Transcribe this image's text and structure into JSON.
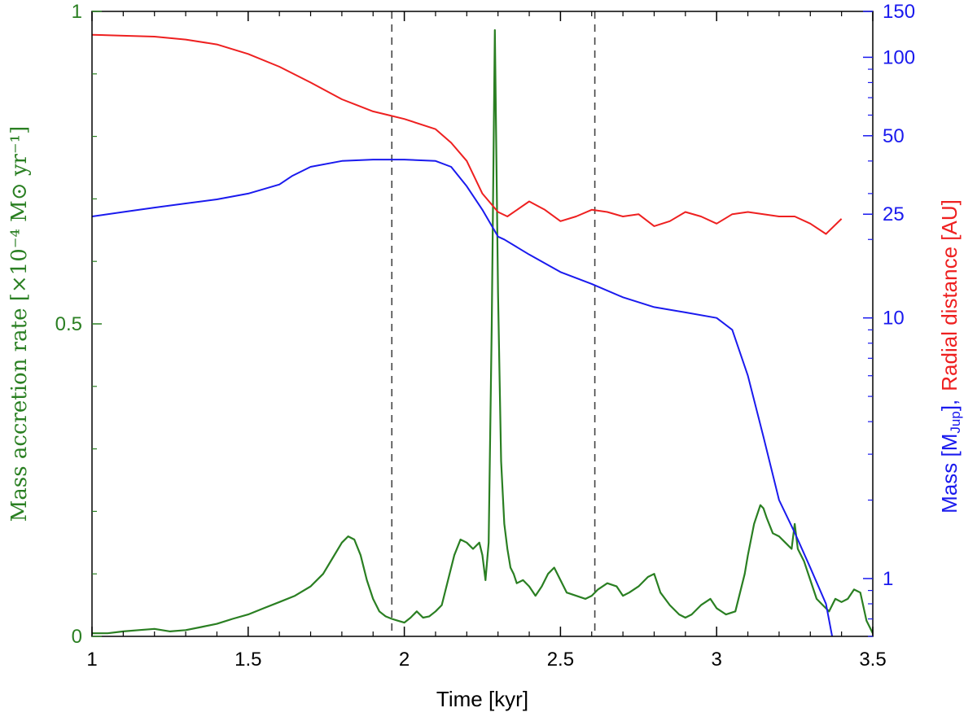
{
  "chart_data": {
    "type": "line",
    "colors": {
      "accretion": "#2a7f22",
      "mass": "#1a1aee",
      "radius": "#ee2020",
      "axis": "#000000",
      "dashed": "#444444"
    },
    "x_axis": {
      "label": "Time [kyr]",
      "range": [
        1,
        3.5
      ],
      "ticks": [
        1,
        1.5,
        2,
        2.5,
        3,
        3.5
      ],
      "tick_labels": [
        "1",
        "1.5",
        "2",
        "2.5",
        "3",
        "3.5"
      ]
    },
    "y_left": {
      "label_main": "Mass accretion rate ",
      "label_unit": "[×10⁻⁴ M⊙ yr⁻¹]",
      "range": [
        0,
        1
      ],
      "ticks": [
        0,
        0.5,
        1
      ],
      "tick_labels": [
        "0",
        "0.5",
        "1"
      ]
    },
    "y_right": {
      "scale": "log",
      "range": [
        0.6,
        150
      ],
      "ticks": [
        1,
        10,
        25,
        50,
        100,
        150
      ],
      "tick_labels": [
        "1",
        "10",
        "25",
        "50",
        "100",
        "150"
      ],
      "label_mass": "Mass [M",
      "label_mass_sub": "Jup",
      "label_mass_end": "],",
      "label_radius": "Radial distance [AU]"
    },
    "vlines": [
      1.96,
      2.61
    ],
    "series": [
      {
        "name": "Mass accretion rate",
        "axis": "left",
        "x": [
          1.0,
          1.05,
          1.1,
          1.15,
          1.2,
          1.25,
          1.3,
          1.35,
          1.4,
          1.45,
          1.5,
          1.55,
          1.6,
          1.65,
          1.7,
          1.74,
          1.77,
          1.8,
          1.82,
          1.84,
          1.86,
          1.88,
          1.9,
          1.92,
          1.94,
          1.96,
          1.98,
          2.0,
          2.02,
          2.04,
          2.06,
          2.08,
          2.1,
          2.12,
          2.14,
          2.16,
          2.18,
          2.2,
          2.22,
          2.24,
          2.25,
          2.26,
          2.27,
          2.28,
          2.29,
          2.3,
          2.31,
          2.32,
          2.33,
          2.34,
          2.35,
          2.36,
          2.38,
          2.4,
          2.42,
          2.44,
          2.46,
          2.48,
          2.5,
          2.52,
          2.55,
          2.58,
          2.6,
          2.62,
          2.65,
          2.68,
          2.7,
          2.72,
          2.75,
          2.78,
          2.8,
          2.82,
          2.85,
          2.88,
          2.9,
          2.92,
          2.95,
          2.98,
          3.0,
          3.03,
          3.06,
          3.09,
          3.1,
          3.12,
          3.14,
          3.15,
          3.16,
          3.18,
          3.2,
          3.22,
          3.24,
          3.25,
          3.26,
          3.28,
          3.3,
          3.32,
          3.34,
          3.36,
          3.38,
          3.4,
          3.42,
          3.44,
          3.46,
          3.48,
          3.5
        ],
        "values": [
          0.005,
          0.005,
          0.008,
          0.01,
          0.012,
          0.008,
          0.01,
          0.015,
          0.02,
          0.028,
          0.035,
          0.045,
          0.055,
          0.065,
          0.08,
          0.1,
          0.125,
          0.15,
          0.16,
          0.155,
          0.13,
          0.09,
          0.06,
          0.04,
          0.032,
          0.028,
          0.025,
          0.022,
          0.03,
          0.04,
          0.03,
          0.032,
          0.04,
          0.05,
          0.09,
          0.13,
          0.155,
          0.15,
          0.14,
          0.15,
          0.13,
          0.09,
          0.15,
          0.5,
          0.97,
          0.55,
          0.28,
          0.18,
          0.14,
          0.11,
          0.1,
          0.085,
          0.09,
          0.08,
          0.065,
          0.08,
          0.1,
          0.11,
          0.09,
          0.07,
          0.065,
          0.06,
          0.065,
          0.075,
          0.085,
          0.08,
          0.065,
          0.07,
          0.08,
          0.095,
          0.1,
          0.07,
          0.05,
          0.035,
          0.03,
          0.035,
          0.05,
          0.06,
          0.045,
          0.035,
          0.04,
          0.1,
          0.13,
          0.18,
          0.21,
          0.205,
          0.19,
          0.165,
          0.16,
          0.15,
          0.14,
          0.18,
          0.14,
          0.12,
          0.09,
          0.06,
          0.05,
          0.04,
          0.06,
          0.055,
          0.06,
          0.075,
          0.07,
          0.025,
          0.005
        ]
      },
      {
        "name": "Mass",
        "axis": "right",
        "x": [
          1.0,
          1.1,
          1.2,
          1.3,
          1.4,
          1.5,
          1.6,
          1.64,
          1.7,
          1.8,
          1.9,
          2.0,
          2.1,
          2.15,
          2.2,
          2.25,
          2.3,
          2.32,
          2.4,
          2.5,
          2.6,
          2.7,
          2.8,
          2.9,
          3.0,
          3.05,
          3.1,
          3.15,
          3.2,
          3.25,
          3.3,
          3.35,
          3.37,
          3.39
        ],
        "values": [
          24.5,
          25.5,
          26.5,
          27.5,
          28.5,
          30,
          32.5,
          35,
          38,
          40,
          40.5,
          40.5,
          40,
          38,
          32,
          26,
          20.5,
          20,
          17.5,
          15,
          13.5,
          12,
          11,
          10.5,
          10,
          9,
          6,
          3.5,
          2,
          1.5,
          1.1,
          0.8,
          0.6,
          0.45
        ]
      },
      {
        "name": "Radial distance",
        "axis": "right",
        "x": [
          1.0,
          1.1,
          1.2,
          1.3,
          1.4,
          1.5,
          1.6,
          1.7,
          1.8,
          1.9,
          1.95,
          2.0,
          2.1,
          2.15,
          2.2,
          2.25,
          2.3,
          2.33,
          2.4,
          2.45,
          2.5,
          2.55,
          2.6,
          2.65,
          2.7,
          2.75,
          2.8,
          2.85,
          2.9,
          2.95,
          3.0,
          3.05,
          3.1,
          3.15,
          3.2,
          3.25,
          3.3,
          3.35,
          3.4
        ],
        "values": [
          122,
          121,
          120,
          117,
          112,
          103,
          92,
          80,
          69,
          62,
          60,
          58,
          53,
          47,
          40,
          30,
          25.5,
          24.5,
          28,
          26,
          23.5,
          24.5,
          26,
          25.5,
          24.5,
          25,
          22.5,
          23.5,
          25.5,
          24.5,
          23,
          25,
          25.5,
          25,
          24.5,
          24.5,
          23,
          21,
          24
        ]
      }
    ]
  }
}
